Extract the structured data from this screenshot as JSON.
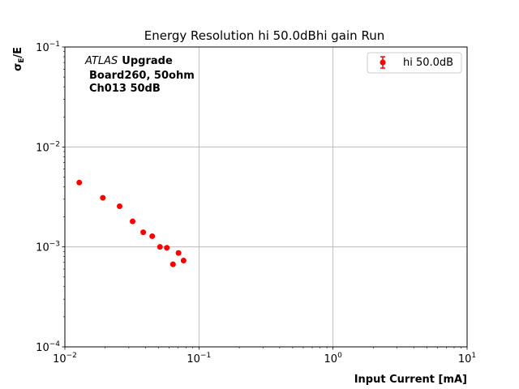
{
  "chart_data": {
    "type": "scatter",
    "title": "Energy Resolution hi 50.0dBhi gain Run",
    "xlabel": "Input Current [mA]",
    "ylabel_main": "σ",
    "ylabel_sub": "E",
    "ylabel_tail": "/E",
    "xscale": "log",
    "yscale": "log",
    "xlim": [
      0.01,
      10
    ],
    "ylim": [
      0.0001,
      0.1
    ],
    "grid": true,
    "x_ticks": [
      {
        "value": 0.01,
        "base": "10",
        "exp": "−2"
      },
      {
        "value": 0.1,
        "base": "10",
        "exp": "−1"
      },
      {
        "value": 1,
        "base": "10",
        "exp": "0"
      },
      {
        "value": 10,
        "base": "10",
        "exp": "1"
      }
    ],
    "y_ticks": [
      {
        "value": 0.0001,
        "base": "10",
        "exp": "−4"
      },
      {
        "value": 0.001,
        "base": "10",
        "exp": "−3"
      },
      {
        "value": 0.01,
        "base": "10",
        "exp": "−2"
      },
      {
        "value": 0.1,
        "base": "10",
        "exp": "−1"
      }
    ],
    "annotation": {
      "italic": "ATLAS",
      "bold": "Upgrade",
      "line2": "Board260, 50ohm",
      "line3": "Ch013 50dB"
    },
    "legend": {
      "position": "top-right",
      "label": "hi 50.0dB"
    },
    "series": [
      {
        "name": "hi 50.0dB",
        "color": "#ff0000",
        "points": [
          {
            "x": 0.0128,
            "y": 0.0044
          },
          {
            "x": 0.0192,
            "y": 0.0031
          },
          {
            "x": 0.0256,
            "y": 0.00255
          },
          {
            "x": 0.032,
            "y": 0.0018
          },
          {
            "x": 0.0384,
            "y": 0.0014
          },
          {
            "x": 0.0448,
            "y": 0.00128
          },
          {
            "x": 0.0512,
            "y": 0.001
          },
          {
            "x": 0.0576,
            "y": 0.00098
          },
          {
            "x": 0.064,
            "y": 0.00067
          },
          {
            "x": 0.0704,
            "y": 0.00087
          },
          {
            "x": 0.0768,
            "y": 0.00073
          }
        ]
      }
    ]
  }
}
